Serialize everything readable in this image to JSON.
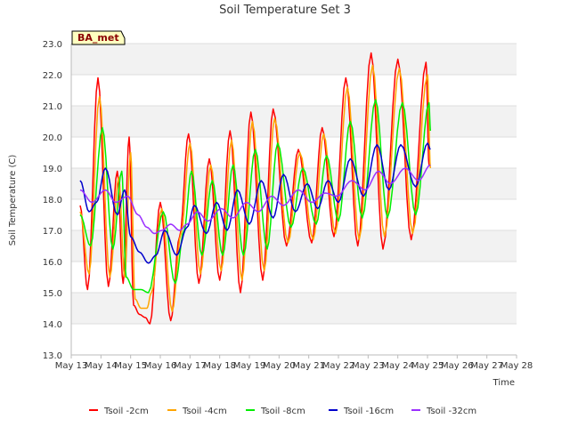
{
  "chart_data": {
    "type": "line",
    "title": "Soil Temperature Set 3",
    "xlabel": "Time",
    "ylabel": "Soil Temperature (C)",
    "badge": "BA_met",
    "ylim": [
      13.0,
      23.0
    ],
    "yticks": [
      "13.0",
      "14.0",
      "15.0",
      "16.0",
      "17.0",
      "18.0",
      "19.0",
      "20.0",
      "21.0",
      "22.0",
      "23.0"
    ],
    "xlim": [
      13,
      28
    ],
    "xticks": [
      {
        "x": 13,
        "label": "May 13"
      },
      {
        "x": 14,
        "label": "May 14"
      },
      {
        "x": 15,
        "label": "May 15"
      },
      {
        "x": 16,
        "label": "May 16"
      },
      {
        "x": 17,
        "label": "May 17"
      },
      {
        "x": 18,
        "label": "May 18"
      },
      {
        "x": 19,
        "label": "May 19"
      },
      {
        "x": 20,
        "label": "May 20"
      },
      {
        "x": 21,
        "label": "May 21"
      },
      {
        "x": 22,
        "label": "May 22"
      },
      {
        "x": 23,
        "label": "May 23"
      },
      {
        "x": 24,
        "label": "May 24"
      },
      {
        "x": 25,
        "label": "May 25"
      },
      {
        "x": 26,
        "label": "May 26"
      },
      {
        "x": 27,
        "label": "May 27"
      },
      {
        "x": 28,
        "label": "May 28"
      }
    ],
    "grid": true,
    "legend_position": "bottom",
    "series": [
      {
        "name": "Tsoil -2cm",
        "color": "#ff0000",
        "points": [
          [
            13.3,
            17.8
          ],
          [
            13.55,
            15.1
          ],
          [
            13.9,
            21.9
          ],
          [
            14.25,
            15.2
          ],
          [
            14.55,
            18.9
          ],
          [
            14.75,
            15.3
          ],
          [
            14.95,
            20.0
          ],
          [
            15.1,
            14.6
          ],
          [
            15.3,
            14.3
          ],
          [
            15.5,
            14.2
          ],
          [
            15.65,
            14.0
          ],
          [
            16.0,
            17.9
          ],
          [
            16.35,
            14.1
          ],
          [
            16.65,
            16.8
          ],
          [
            16.95,
            20.1
          ],
          [
            17.3,
            15.3
          ],
          [
            17.65,
            19.3
          ],
          [
            18.0,
            15.4
          ],
          [
            18.35,
            20.2
          ],
          [
            18.7,
            15.0
          ],
          [
            19.05,
            20.8
          ],
          [
            19.45,
            15.4
          ],
          [
            19.8,
            20.9
          ],
          [
            20.25,
            16.5
          ],
          [
            20.65,
            19.6
          ],
          [
            21.1,
            16.6
          ],
          [
            21.45,
            20.3
          ],
          [
            21.85,
            16.8
          ],
          [
            22.25,
            21.9
          ],
          [
            22.65,
            16.5
          ],
          [
            23.1,
            22.7
          ],
          [
            23.5,
            16.4
          ],
          [
            24.0,
            22.5
          ],
          [
            24.45,
            16.7
          ],
          [
            24.95,
            22.4
          ],
          [
            25.05,
            19.1
          ]
        ]
      },
      {
        "name": "Tsoil -4cm",
        "color": "#ffa500",
        "points": [
          [
            13.3,
            17.6
          ],
          [
            13.6,
            15.6
          ],
          [
            13.95,
            21.3
          ],
          [
            14.3,
            15.5
          ],
          [
            14.6,
            18.7
          ],
          [
            14.8,
            15.5
          ],
          [
            15.0,
            19.5
          ],
          [
            15.15,
            14.8
          ],
          [
            15.35,
            14.5
          ],
          [
            15.55,
            14.5
          ],
          [
            15.7,
            15.0
          ],
          [
            16.05,
            17.7
          ],
          [
            16.4,
            14.4
          ],
          [
            16.7,
            16.9
          ],
          [
            17.0,
            19.8
          ],
          [
            17.35,
            15.6
          ],
          [
            17.7,
            19.1
          ],
          [
            18.05,
            15.7
          ],
          [
            18.4,
            19.9
          ],
          [
            18.75,
            15.4
          ],
          [
            19.1,
            20.5
          ],
          [
            19.5,
            15.7
          ],
          [
            19.85,
            20.6
          ],
          [
            20.3,
            16.6
          ],
          [
            20.7,
            19.5
          ],
          [
            21.15,
            16.7
          ],
          [
            21.5,
            20.1
          ],
          [
            21.9,
            16.9
          ],
          [
            22.3,
            21.6
          ],
          [
            22.7,
            16.7
          ],
          [
            23.15,
            22.3
          ],
          [
            23.55,
            16.8
          ],
          [
            24.05,
            22.2
          ],
          [
            24.5,
            16.9
          ],
          [
            25.0,
            22.0
          ],
          [
            25.1,
            19.0
          ]
        ]
      },
      {
        "name": "Tsoil -8cm",
        "color": "#00ee00",
        "points": [
          [
            13.3,
            17.5
          ],
          [
            13.65,
            16.5
          ],
          [
            14.05,
            20.3
          ],
          [
            14.4,
            16.4
          ],
          [
            14.7,
            18.9
          ],
          [
            14.85,
            15.5
          ],
          [
            15.1,
            15.1
          ],
          [
            15.35,
            15.1
          ],
          [
            15.6,
            15.0
          ],
          [
            16.1,
            17.6
          ],
          [
            16.5,
            15.3
          ],
          [
            16.8,
            17.0
          ],
          [
            17.05,
            18.9
          ],
          [
            17.4,
            16.2
          ],
          [
            17.75,
            18.6
          ],
          [
            18.1,
            16.2
          ],
          [
            18.45,
            19.1
          ],
          [
            18.8,
            16.2
          ],
          [
            19.2,
            19.6
          ],
          [
            19.6,
            16.4
          ],
          [
            19.95,
            19.8
          ],
          [
            20.4,
            17.1
          ],
          [
            20.8,
            19.0
          ],
          [
            21.25,
            17.2
          ],
          [
            21.6,
            19.4
          ],
          [
            22.0,
            17.3
          ],
          [
            22.4,
            20.5
          ],
          [
            22.8,
            17.4
          ],
          [
            23.25,
            21.2
          ],
          [
            23.65,
            17.4
          ],
          [
            24.15,
            21.1
          ],
          [
            24.6,
            17.5
          ],
          [
            25.05,
            21.1
          ],
          [
            25.1,
            20.2
          ]
        ]
      },
      {
        "name": "Tsoil -16cm",
        "color": "#0000cc",
        "points": [
          [
            13.3,
            18.6
          ],
          [
            13.6,
            17.6
          ],
          [
            13.85,
            17.9
          ],
          [
            14.15,
            19.0
          ],
          [
            14.55,
            17.5
          ],
          [
            14.8,
            18.3
          ],
          [
            15.0,
            16.8
          ],
          [
            15.3,
            16.3
          ],
          [
            15.6,
            15.95
          ],
          [
            15.85,
            16.2
          ],
          [
            16.15,
            17.0
          ],
          [
            16.55,
            16.2
          ],
          [
            16.9,
            17.1
          ],
          [
            17.15,
            17.8
          ],
          [
            17.55,
            16.9
          ],
          [
            17.9,
            17.9
          ],
          [
            18.25,
            17.0
          ],
          [
            18.6,
            18.3
          ],
          [
            19.0,
            17.2
          ],
          [
            19.4,
            18.6
          ],
          [
            19.8,
            17.4
          ],
          [
            20.15,
            18.8
          ],
          [
            20.55,
            17.6
          ],
          [
            20.95,
            18.5
          ],
          [
            21.3,
            17.7
          ],
          [
            21.65,
            18.6
          ],
          [
            22.0,
            17.9
          ],
          [
            22.4,
            19.3
          ],
          [
            22.85,
            18.1
          ],
          [
            23.3,
            19.75
          ],
          [
            23.7,
            18.3
          ],
          [
            24.1,
            19.75
          ],
          [
            24.6,
            18.4
          ],
          [
            25.0,
            19.8
          ],
          [
            25.1,
            19.6
          ]
        ]
      },
      {
        "name": "Tsoil -32cm",
        "color": "#9b30ff",
        "points": [
          [
            13.3,
            18.3
          ],
          [
            13.7,
            17.9
          ],
          [
            14.15,
            18.3
          ],
          [
            14.5,
            17.9
          ],
          [
            14.9,
            18.1
          ],
          [
            15.25,
            17.5
          ],
          [
            15.55,
            17.1
          ],
          [
            15.8,
            16.9
          ],
          [
            16.05,
            17.0
          ],
          [
            16.35,
            17.2
          ],
          [
            16.65,
            17.0
          ],
          [
            16.9,
            17.2
          ],
          [
            17.25,
            17.6
          ],
          [
            17.6,
            17.3
          ],
          [
            18.05,
            17.7
          ],
          [
            18.45,
            17.4
          ],
          [
            18.9,
            17.9
          ],
          [
            19.3,
            17.6
          ],
          [
            19.75,
            18.1
          ],
          [
            20.15,
            17.8
          ],
          [
            20.65,
            18.3
          ],
          [
            21.1,
            17.9
          ],
          [
            21.55,
            18.2
          ],
          [
            21.95,
            18.1
          ],
          [
            22.45,
            18.6
          ],
          [
            22.9,
            18.3
          ],
          [
            23.35,
            18.9
          ],
          [
            23.75,
            18.5
          ],
          [
            24.25,
            19.0
          ],
          [
            24.7,
            18.6
          ],
          [
            25.1,
            19.1
          ]
        ]
      }
    ]
  }
}
